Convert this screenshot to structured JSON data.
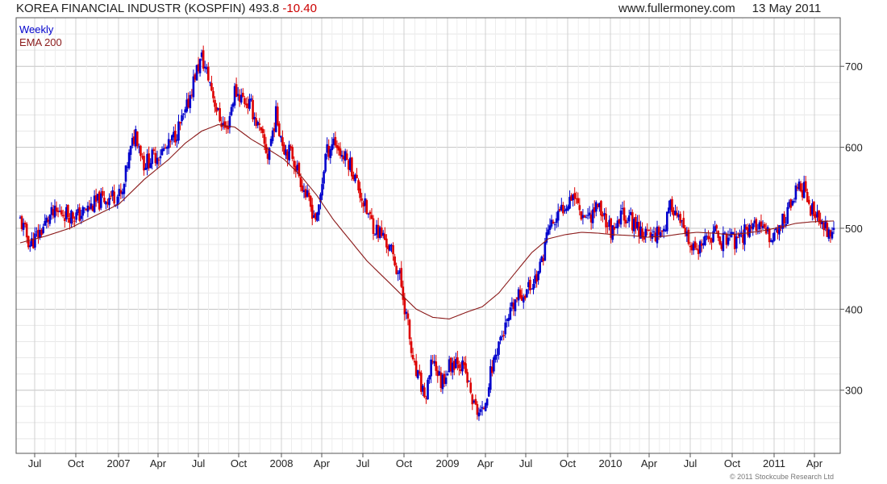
{
  "header": {
    "title": "KOREA FINANCIAL INDUSTR (KOSPFIN)",
    "last": "493.8",
    "change": "-10.40",
    "site": "www.fullermoney.com",
    "date": "13 May 2011"
  },
  "footer": {
    "copyright": "© 2011 Stockcube Research Ltd"
  },
  "colors": {
    "up": "#0000cc",
    "down": "#dd0000",
    "ema": "#8b1a1a",
    "grid": "#d0d0d0",
    "frame": "#555555"
  },
  "chart_data": {
    "type": "candlestick",
    "legend": [
      {
        "name": "Weekly",
        "color": "#0000cc"
      },
      {
        "name": "EMA 200",
        "color": "#8b1a1a"
      }
    ],
    "legend_placement": "top-left",
    "y_axis": {
      "position": "right",
      "ylim": [
        222,
        760
      ],
      "ticks": [
        300,
        400,
        500,
        600,
        700
      ]
    },
    "x_axis": {
      "ticks": [
        "Jul",
        "Oct",
        "2007",
        "Apr",
        "Jul",
        "Oct",
        "2008",
        "Apr",
        "Jul",
        "Oct",
        "2009",
        "Apr",
        "Jul",
        "Oct",
        "2010",
        "Apr",
        "Jul",
        "Oct",
        "2011",
        "Apr"
      ]
    },
    "grid": true,
    "close_path": [
      [
        0,
        510
      ],
      [
        6,
        480
      ],
      [
        12,
        495
      ],
      [
        18,
        515
      ],
      [
        25,
        520
      ],
      [
        35,
        515
      ],
      [
        45,
        530
      ],
      [
        55,
        540
      ],
      [
        62,
        540
      ],
      [
        65,
        580
      ],
      [
        70,
        620
      ],
      [
        75,
        580
      ],
      [
        82,
        590
      ],
      [
        90,
        600
      ],
      [
        95,
        620
      ],
      [
        100,
        640
      ],
      [
        106,
        690
      ],
      [
        110,
        710
      ],
      [
        115,
        680
      ],
      [
        120,
        640
      ],
      [
        125,
        620
      ],
      [
        130,
        670
      ],
      [
        135,
        660
      ],
      [
        140,
        650
      ],
      [
        145,
        620
      ],
      [
        150,
        590
      ],
      [
        155,
        640
      ],
      [
        160,
        600
      ],
      [
        165,
        590
      ],
      [
        170,
        560
      ],
      [
        175,
        530
      ],
      [
        180,
        510
      ],
      [
        185,
        590
      ],
      [
        190,
        610
      ],
      [
        195,
        590
      ],
      [
        200,
        580
      ],
      [
        205,
        550
      ],
      [
        210,
        520
      ],
      [
        215,
        500
      ],
      [
        220,
        490
      ],
      [
        225,
        470
      ],
      [
        230,
        440
      ],
      [
        235,
        380
      ],
      [
        238,
        330
      ],
      [
        242,
        310
      ],
      [
        246,
        290
      ],
      [
        250,
        340
      ],
      [
        255,
        310
      ],
      [
        260,
        330
      ],
      [
        265,
        340
      ],
      [
        270,
        320
      ],
      [
        275,
        280
      ],
      [
        280,
        270
      ],
      [
        285,
        320
      ],
      [
        290,
        360
      ],
      [
        295,
        380
      ],
      [
        300,
        410
      ],
      [
        305,
        420
      ],
      [
        310,
        430
      ],
      [
        315,
        450
      ],
      [
        320,
        500
      ],
      [
        325,
        510
      ],
      [
        330,
        530
      ],
      [
        335,
        545
      ],
      [
        340,
        520
      ],
      [
        345,
        515
      ],
      [
        350,
        530
      ],
      [
        355,
        510
      ],
      [
        360,
        490
      ],
      [
        365,
        520
      ],
      [
        370,
        510
      ],
      [
        375,
        500
      ],
      [
        380,
        490
      ],
      [
        385,
        495
      ],
      [
        390,
        500
      ],
      [
        395,
        530
      ],
      [
        400,
        505
      ],
      [
        405,
        480
      ],
      [
        410,
        470
      ],
      [
        415,
        480
      ],
      [
        420,
        495
      ],
      [
        425,
        485
      ],
      [
        430,
        490
      ],
      [
        435,
        480
      ],
      [
        440,
        500
      ],
      [
        445,
        505
      ],
      [
        450,
        495
      ],
      [
        455,
        490
      ],
      [
        460,
        500
      ],
      [
        465,
        520
      ],
      [
        470,
        545
      ],
      [
        475,
        550
      ],
      [
        480,
        520
      ],
      [
        485,
        505
      ],
      [
        489,
        500
      ],
      [
        493,
        494
      ]
    ],
    "ema_path": [
      [
        0,
        482
      ],
      [
        15,
        490
      ],
      [
        30,
        500
      ],
      [
        45,
        515
      ],
      [
        60,
        530
      ],
      [
        75,
        560
      ],
      [
        90,
        585
      ],
      [
        100,
        605
      ],
      [
        110,
        620
      ],
      [
        120,
        628
      ],
      [
        130,
        625
      ],
      [
        140,
        610
      ],
      [
        150,
        598
      ],
      [
        160,
        585
      ],
      [
        170,
        565
      ],
      [
        180,
        540
      ],
      [
        190,
        510
      ],
      [
        200,
        485
      ],
      [
        210,
        460
      ],
      [
        220,
        440
      ],
      [
        230,
        420
      ],
      [
        240,
        400
      ],
      [
        250,
        390
      ],
      [
        260,
        388
      ],
      [
        270,
        396
      ],
      [
        280,
        403
      ],
      [
        290,
        420
      ],
      [
        300,
        445
      ],
      [
        310,
        470
      ],
      [
        320,
        487
      ],
      [
        330,
        492
      ],
      [
        340,
        495
      ],
      [
        350,
        494
      ],
      [
        360,
        492
      ],
      [
        370,
        491
      ],
      [
        380,
        489
      ],
      [
        390,
        490
      ],
      [
        400,
        493
      ],
      [
        410,
        495
      ],
      [
        420,
        494
      ],
      [
        430,
        492
      ],
      [
        440,
        494
      ],
      [
        450,
        497
      ],
      [
        460,
        501
      ],
      [
        470,
        506
      ],
      [
        480,
        508
      ],
      [
        493,
        509
      ]
    ]
  }
}
